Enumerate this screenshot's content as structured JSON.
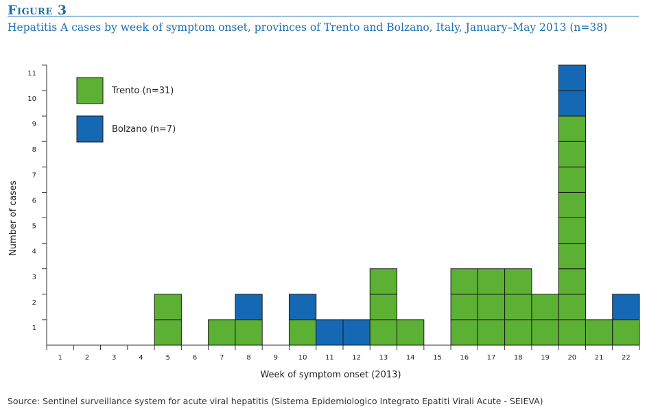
{
  "figure": {
    "label": "Figure 3",
    "title": "Hepatitis A cases by week of symptom onset, provinces of Trento and Bolzano, Italy, January–May 2013 (n=38)",
    "source": "Source: Sentinel surveillance system for acute viral hepatitis (Sistema Epidemiologico Integrato Epatiti Virali Acute - SEIEVA)"
  },
  "colors": {
    "trento": "#5cb135",
    "bolzano": "#1569b4",
    "accent": "#1b6fb0"
  },
  "chart_data": {
    "type": "bar",
    "stacked": true,
    "xlabel": "Week of symptom onset (2013)",
    "ylabel": "Number of cases",
    "categories": [
      "1",
      "2",
      "3",
      "4",
      "5",
      "6",
      "7",
      "8",
      "9",
      "10",
      "11",
      "12",
      "13",
      "14",
      "15",
      "16",
      "17",
      "18",
      "19",
      "20",
      "21",
      "22"
    ],
    "ylim": [
      0,
      11
    ],
    "yticks": [
      1,
      2,
      3,
      4,
      5,
      6,
      7,
      8,
      9,
      10,
      11
    ],
    "legend_position": "top-left",
    "series": [
      {
        "name": "Trento (n=31)",
        "color": "#5cb135",
        "values": [
          0,
          0,
          0,
          0,
          2,
          0,
          1,
          1,
          0,
          1,
          0,
          0,
          3,
          1,
          0,
          3,
          3,
          3,
          2,
          9,
          1,
          1
        ]
      },
      {
        "name": "Bolzano (n=7)",
        "color": "#1569b4",
        "values": [
          0,
          0,
          0,
          0,
          0,
          0,
          0,
          1,
          0,
          1,
          1,
          1,
          0,
          0,
          0,
          0,
          0,
          0,
          0,
          2,
          0,
          1
        ]
      }
    ]
  }
}
